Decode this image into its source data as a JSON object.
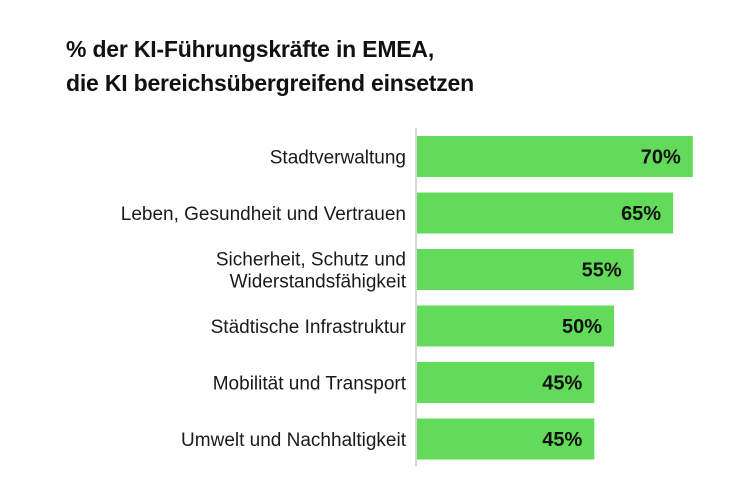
{
  "chart_data": {
    "type": "bar",
    "orientation": "horizontal",
    "title": [
      "% der KI-Führungskräfte in EMEA,",
      "die KI bereichsübergreifend einsetzen"
    ],
    "categories": [
      [
        "Stadtverwaltung"
      ],
      [
        "Leben, Gesundheit und Vertrauen"
      ],
      [
        "Sicherheit, Schutz und",
        "Widerstandsfähigkeit"
      ],
      [
        "Städtische Infrastruktur"
      ],
      [
        "Mobilität und Transport"
      ],
      [
        "Umwelt und Nachhaltigkeit"
      ]
    ],
    "values": [
      70,
      65,
      55,
      50,
      45,
      45
    ],
    "value_labels": [
      "70%",
      "65%",
      "55%",
      "50%",
      "45%",
      "45%"
    ],
    "unit": "%",
    "xlim": [
      0,
      100
    ],
    "xlabel": "",
    "ylabel": "",
    "grid": false,
    "legend": "none",
    "bar_color": "#62DA5A",
    "axis_color": "#C8C8C8"
  }
}
